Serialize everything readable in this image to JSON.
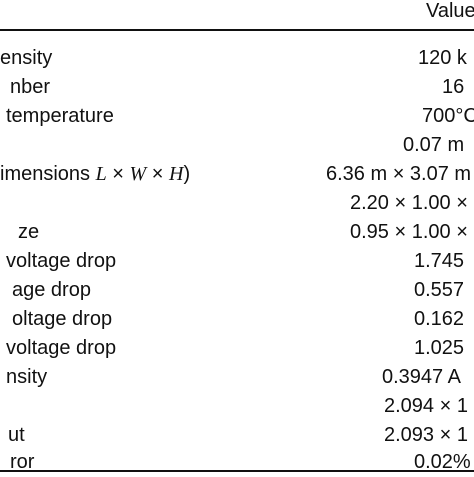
{
  "table": {
    "header": {
      "value": "Value"
    },
    "rows": [
      {
        "parameter": "ensity",
        "value": "120 k"
      },
      {
        "parameter": "nber",
        "value": "16"
      },
      {
        "parameter": "temperature",
        "value": "700°C"
      },
      {
        "parameter": "",
        "value": "0.07 m"
      },
      {
        "parameter": "imensions L × W × H)",
        "value": "6.36 m × 3.07 m"
      },
      {
        "parameter": "",
        "value": "2.20 × 1.00 ×"
      },
      {
        "parameter": "ze",
        "value": "0.95 × 1.00 ×"
      },
      {
        "parameter": "voltage drop",
        "value": "1.745"
      },
      {
        "parameter": "age drop",
        "value": "0.557"
      },
      {
        "parameter": "oltage drop",
        "value": "0.162"
      },
      {
        "parameter": "voltage drop",
        "value": "1.025"
      },
      {
        "parameter": "nsity",
        "value": "0.3947 A"
      },
      {
        "parameter": "",
        "value": "2.094 × 1"
      },
      {
        "parameter": "ut",
        "value": "2.093 × 1"
      },
      {
        "parameter": "ror",
        "value": "0.02%"
      }
    ]
  }
}
